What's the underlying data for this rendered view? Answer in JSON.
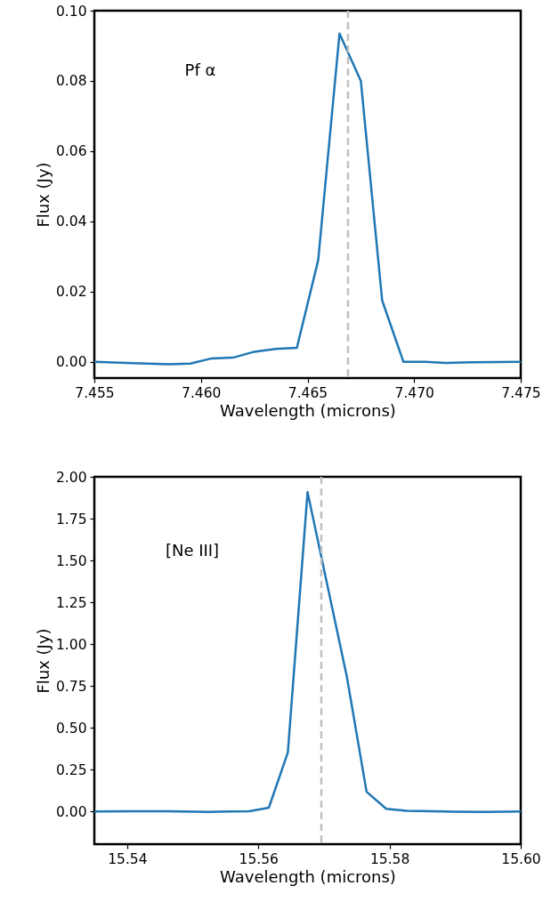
{
  "chart_data": [
    {
      "type": "line",
      "xlabel": "Wavelength (microns)",
      "ylabel": "Flux (Jy)",
      "x": [
        7.455,
        7.4565,
        7.4585,
        7.4595,
        7.4605,
        7.4615,
        7.4625,
        7.4635,
        7.4645,
        7.4655,
        7.4665,
        7.4675,
        7.4685,
        7.4695,
        7.4705,
        7.4715,
        7.4728,
        7.475
      ],
      "series": [
        {
          "color": "#1f77b4",
          "values": [
            0,
            -0.0003,
            -0.0007,
            -0.0005,
            0.001,
            0.0012,
            0.0029,
            0.0037,
            0.004,
            0.029,
            0.0935,
            0.08,
            0.0175,
            0,
            0,
            -0.0003,
            -0.0001,
            0
          ]
        }
      ],
      "xlim": [
        7.455,
        7.475
      ],
      "ylim": [
        -0.0046,
        0.1
      ],
      "xticks": [
        7.455,
        {
          "value": 7.46,
          "label": "7.460"
        },
        7.465,
        {
          "value": 7.47,
          "label": "7.470"
        },
        7.475
      ],
      "yticks": [
        {
          "value": 0,
          "label": "0.00"
        },
        0.02,
        0.04,
        0.06,
        0.08,
        {
          "value": 0.1,
          "label": "0.10"
        }
      ],
      "ref_lines": [
        {
          "axis": "x",
          "value": 7.4669,
          "color": "#c0c0c0",
          "line_style": "dashed"
        }
      ],
      "annotations": [
        "Pf α"
      ]
    },
    {
      "type": "line",
      "xlabel": "Wavelength (microns)",
      "ylabel": "Flux (Jy)",
      "x": [
        15.535,
        15.5405,
        15.5464,
        15.5523,
        15.5586,
        15.5616,
        15.5645,
        15.5675,
        15.5735,
        15.5765,
        15.5795,
        15.5826,
        15.5885,
        15.5945,
        15.6
      ],
      "series": [
        {
          "color": "#1f77b4",
          "values": [
            0,
            0.001,
            0.001,
            -0.002,
            0.002,
            0.023,
            0.353,
            1.908,
            0.804,
            0.118,
            0.016,
            0.004,
            0,
            -0.002,
            0
          ]
        }
      ],
      "xlim": [
        15.535,
        15.6
      ],
      "ylim": [
        -0.195,
        2.0
      ],
      "xticks": [
        15.54,
        15.56,
        15.58,
        {
          "value": 15.6,
          "label": "15.60"
        }
      ],
      "yticks": [
        {
          "value": 0,
          "label": "0.00"
        },
        0.25,
        {
          "value": 0.5,
          "label": "0.50"
        },
        0.75,
        {
          "value": 1,
          "label": "1.00"
        },
        1.25,
        {
          "value": 1.5,
          "label": "1.50"
        },
        1.75,
        {
          "value": 2,
          "label": "2.00"
        }
      ],
      "ref_lines": [
        {
          "axis": "x",
          "value": 15.5696,
          "color": "#c0c0c0",
          "line_style": "dashed"
        }
      ],
      "annotations": [
        "[Ne III]"
      ]
    }
  ]
}
